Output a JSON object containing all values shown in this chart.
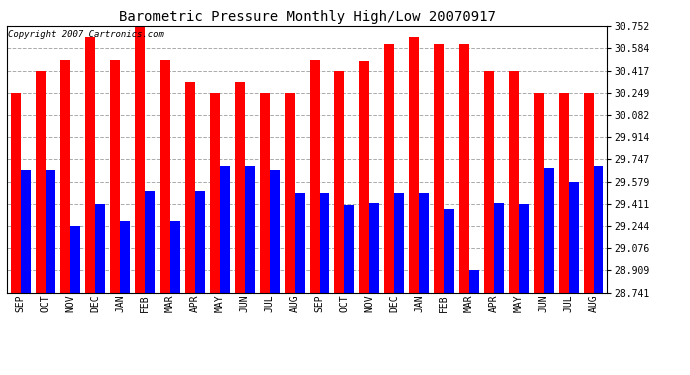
{
  "title": "Barometric Pressure Monthly High/Low 20070917",
  "copyright_text": "Copyright 2007 Cartronics.com",
  "months": [
    "SEP",
    "OCT",
    "NOV",
    "DEC",
    "JAN",
    "FEB",
    "MAR",
    "APR",
    "MAY",
    "JUN",
    "JUL",
    "AUG",
    "SEP",
    "OCT",
    "NOV",
    "DEC",
    "JAN",
    "FEB",
    "MAR",
    "APR",
    "MAY",
    "JUN",
    "JUL",
    "AUG"
  ],
  "highs": [
    30.249,
    30.417,
    30.5,
    30.668,
    30.5,
    30.745,
    30.5,
    30.334,
    30.249,
    30.334,
    30.249,
    30.249,
    30.5,
    30.417,
    30.49,
    30.62,
    30.668,
    30.62,
    30.62,
    30.417,
    30.417,
    30.249,
    30.249,
    30.249
  ],
  "lows": [
    29.67,
    29.67,
    29.244,
    29.411,
    29.28,
    29.51,
    29.28,
    29.51,
    29.7,
    29.7,
    29.67,
    29.49,
    29.49,
    29.4,
    29.42,
    29.49,
    29.49,
    29.37,
    28.909,
    29.42,
    29.411,
    29.68,
    29.579,
    29.7
  ],
  "high_color": "#FF0000",
  "low_color": "#0000FF",
  "background_color": "#FFFFFF",
  "yticks": [
    28.741,
    28.909,
    29.076,
    29.244,
    29.411,
    29.579,
    29.747,
    29.914,
    30.082,
    30.249,
    30.417,
    30.584,
    30.752
  ],
  "ymin": 28.741,
  "ymax": 30.752,
  "grid_color": "#AAAAAA",
  "bar_width": 0.4
}
